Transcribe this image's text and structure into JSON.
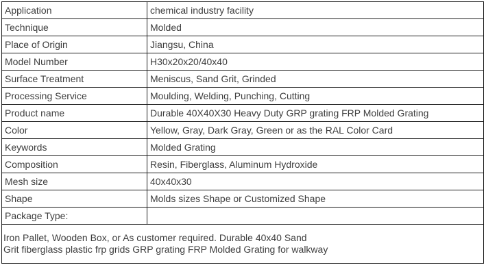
{
  "colors": {
    "border": "#1c1c1c",
    "text": "#3d3d3d",
    "background": "#ffffff"
  },
  "table": {
    "rows": [
      {
        "label": "Application",
        "value": "chemical industry facility"
      },
      {
        "label": "Technique",
        "value": "Molded"
      },
      {
        "label": "Place of Origin",
        "value": "Jiangsu, China"
      },
      {
        "label": "Model Number",
        "value": "H30x20x20/40x40"
      },
      {
        "label": "Surface Treatment",
        "value": "Meniscus, Sand Grit, Grinded"
      },
      {
        "label": "Processing Service",
        "value": "Moulding, Welding, Punching, Cutting"
      },
      {
        "label": "Product name",
        "value": "Durable 40X40X30 Heavy Duty GRP grating FRP Molded Grating"
      },
      {
        "label": "Color",
        "value": "Yellow, Gray, Dark Gray, Green or as the RAL Color Card"
      },
      {
        "label": "Keywords",
        "value": "Molded Grating"
      },
      {
        "label": "Composition",
        "value": "Resin, Fiberglass, Aluminum Hydroxide"
      },
      {
        "label": "Mesh size",
        "value": "40x40x30"
      },
      {
        "label": "Shape",
        "value": "Molds sizes Shape or Customized Shape"
      },
      {
        "label": "Package Type:",
        "value": ""
      }
    ],
    "footer_note": "Iron Pallet, Wooden Box, or As customer required. Durable 40x40 Sand\nGrit fiberglass plastic frp grids GRP grating FRP Molded Grating for walkway"
  }
}
